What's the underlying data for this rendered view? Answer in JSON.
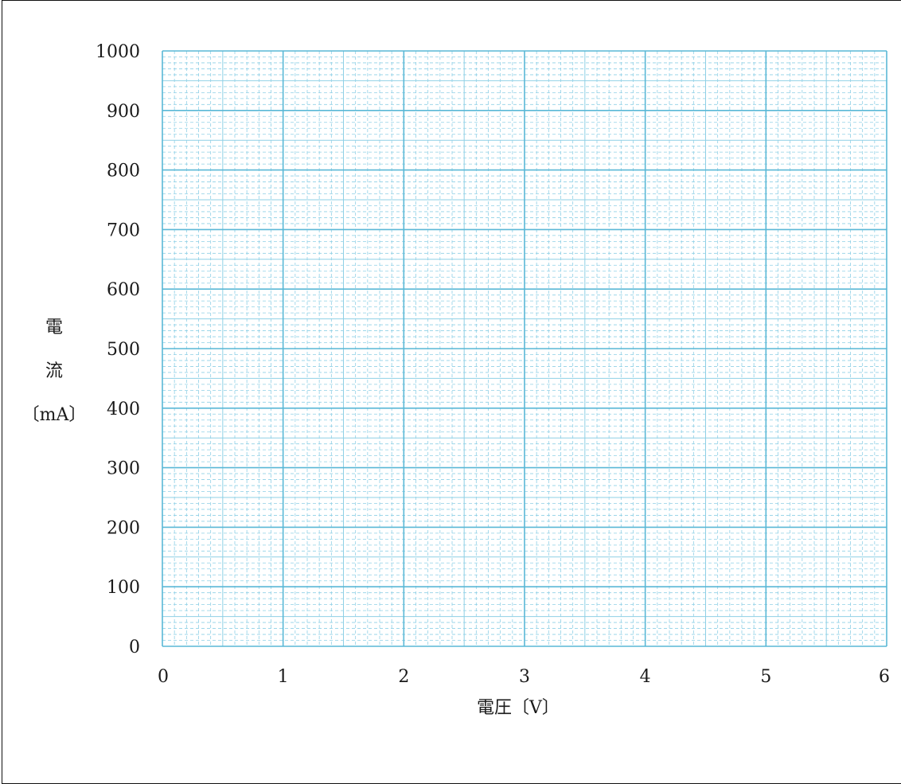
{
  "chart_data": {
    "type": "line",
    "title": "",
    "xlabel": "電圧〔V〕",
    "ylabel": [
      "電",
      "流",
      "〔mA〕"
    ],
    "xlim": [
      0,
      6
    ],
    "ylim": [
      0,
      1000
    ],
    "x_ticks": [
      "0",
      "1",
      "2",
      "3",
      "4",
      "5",
      "6"
    ],
    "y_ticks": [
      "0",
      "100",
      "200",
      "300",
      "400",
      "500",
      "600",
      "700",
      "800",
      "900",
      "1000"
    ],
    "grid": true,
    "grid_minor_divisions": 10,
    "series": []
  },
  "colors": {
    "grid_major": "#5ab8d6",
    "grid_minor": "#8fd0e6",
    "text": "#1a1a1a"
  }
}
